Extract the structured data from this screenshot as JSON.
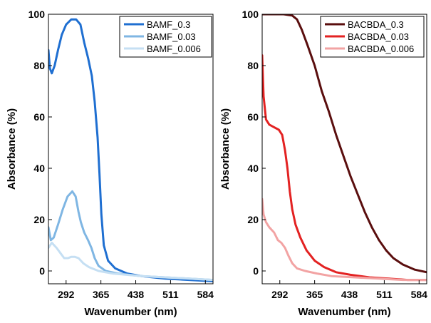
{
  "chart_data": [
    {
      "type": "line",
      "xlabel": "Wavenumber (nm)",
      "ylabel": "Absorbance (%)",
      "xlim": [
        255,
        600
      ],
      "ylim": [
        -5,
        100
      ],
      "xticks": [
        292,
        365,
        438,
        511,
        584
      ],
      "yticks": [
        0,
        20,
        40,
        60,
        80,
        100
      ],
      "grid": false,
      "legend_position": "top-right",
      "series": [
        {
          "name": "BAMF_0.3",
          "color": "#1f6fd1",
          "points": [
            [
              255,
              86
            ],
            [
              258,
              79
            ],
            [
              262,
              77
            ],
            [
              268,
              80
            ],
            [
              275,
              86
            ],
            [
              283,
              92
            ],
            [
              292,
              96
            ],
            [
              303,
              98
            ],
            [
              313,
              98
            ],
            [
              322,
              96
            ],
            [
              330,
              89
            ],
            [
              338,
              83
            ],
            [
              346,
              76
            ],
            [
              352,
              66
            ],
            [
              358,
              52
            ],
            [
              362,
              38
            ],
            [
              366,
              22
            ],
            [
              371,
              10
            ],
            [
              380,
              4
            ],
            [
              395,
              1
            ],
            [
              420,
              -1
            ],
            [
              450,
              -2
            ],
            [
              500,
              -3
            ],
            [
              550,
              -3.5
            ],
            [
              600,
              -4
            ]
          ]
        },
        {
          "name": "BAMF_0.03",
          "color": "#7fb6e3",
          "points": [
            [
              255,
              17
            ],
            [
              260,
              12
            ],
            [
              266,
              13
            ],
            [
              275,
              18
            ],
            [
              285,
              24
            ],
            [
              295,
              29
            ],
            [
              305,
              31
            ],
            [
              312,
              29
            ],
            [
              318,
              23
            ],
            [
              323,
              19
            ],
            [
              330,
              15
            ],
            [
              338,
              12
            ],
            [
              345,
              9
            ],
            [
              352,
              5
            ],
            [
              360,
              2
            ],
            [
              375,
              0
            ],
            [
              400,
              -1
            ],
            [
              450,
              -2
            ],
            [
              500,
              -2.5
            ],
            [
              550,
              -3
            ],
            [
              600,
              -3.5
            ]
          ]
        },
        {
          "name": "BAMF_0.006",
          "color": "#c5dff3",
          "points": [
            [
              255,
              9
            ],
            [
              262,
              11
            ],
            [
              267,
              10
            ],
            [
              272,
              9
            ],
            [
              280,
              7
            ],
            [
              288,
              5
            ],
            [
              296,
              5
            ],
            [
              303,
              5.5
            ],
            [
              310,
              5.5
            ],
            [
              318,
              5
            ],
            [
              328,
              3
            ],
            [
              340,
              1.5
            ],
            [
              360,
              0
            ],
            [
              390,
              -1
            ],
            [
              450,
              -2
            ],
            [
              500,
              -2.5
            ],
            [
              550,
              -3
            ],
            [
              600,
              -3.5
            ]
          ]
        }
      ]
    },
    {
      "type": "line",
      "xlabel": "Wavenumber (nm)",
      "ylabel": "Absorbance (%)",
      "xlim": [
        255,
        600
      ],
      "ylim": [
        -5,
        100
      ],
      "xticks": [
        292,
        365,
        438,
        511,
        584
      ],
      "yticks": [
        0,
        20,
        40,
        60,
        80,
        100
      ],
      "grid": false,
      "legend_position": "top-right",
      "series": [
        {
          "name": "BACBDA_0.3",
          "color": "#5a0e0e",
          "points": [
            [
              255,
              100
            ],
            [
              280,
              100
            ],
            [
              300,
              100
            ],
            [
              318,
              99.5
            ],
            [
              328,
              98
            ],
            [
              338,
              94
            ],
            [
              350,
              88
            ],
            [
              365,
              80
            ],
            [
              380,
              70
            ],
            [
              395,
              62
            ],
            [
              410,
              53
            ],
            [
              425,
              45
            ],
            [
              440,
              37
            ],
            [
              455,
              30
            ],
            [
              470,
              23
            ],
            [
              485,
              17
            ],
            [
              500,
              12
            ],
            [
              515,
              8
            ],
            [
              530,
              5
            ],
            [
              550,
              2.5
            ],
            [
              575,
              0.5
            ],
            [
              600,
              -0.5
            ]
          ]
        },
        {
          "name": "BACBDA_0.03",
          "color": "#e32222",
          "points": [
            [
              255,
              84
            ],
            [
              258,
              68
            ],
            [
              263,
              59
            ],
            [
              270,
              57
            ],
            [
              280,
              56
            ],
            [
              290,
              55
            ],
            [
              297,
              53
            ],
            [
              303,
              47
            ],
            [
              308,
              40
            ],
            [
              313,
              31
            ],
            [
              318,
              24
            ],
            [
              325,
              18
            ],
            [
              335,
              13
            ],
            [
              348,
              8
            ],
            [
              365,
              4
            ],
            [
              385,
              1.5
            ],
            [
              410,
              -0.5
            ],
            [
              440,
              -1.5
            ],
            [
              480,
              -2.5
            ],
            [
              520,
              -3
            ],
            [
              560,
              -3.5
            ],
            [
              600,
              -3.5
            ]
          ]
        },
        {
          "name": "BACBDA_0.006",
          "color": "#f2a3a3",
          "points": [
            [
              255,
              28
            ],
            [
              258,
              22
            ],
            [
              263,
              19
            ],
            [
              270,
              17
            ],
            [
              280,
              15
            ],
            [
              288,
              12
            ],
            [
              295,
              11
            ],
            [
              303,
              9
            ],
            [
              310,
              6
            ],
            [
              318,
              3
            ],
            [
              328,
              1
            ],
            [
              345,
              0
            ],
            [
              370,
              -1
            ],
            [
              400,
              -2
            ],
            [
              450,
              -2.5
            ],
            [
              500,
              -3
            ],
            [
              550,
              -3.5
            ],
            [
              600,
              -3.5
            ]
          ]
        }
      ]
    }
  ]
}
